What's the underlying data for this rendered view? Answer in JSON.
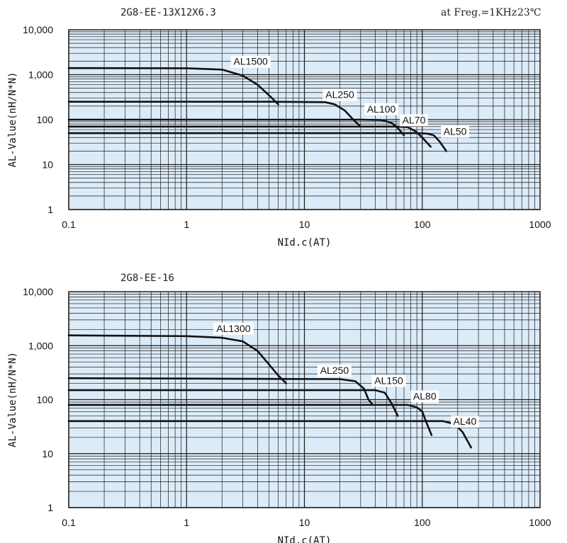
{
  "header": {
    "condition": "at Freg.=1KHz",
    "temperature": "23℃"
  },
  "chart_data": [
    {
      "type": "line",
      "title": "2G8-EE-13X12X6.3",
      "xlabel": "NId.c(AT)",
      "ylabel": "AL-Value(nH/N*N)",
      "xscale": "log",
      "yscale": "log",
      "xlim": [
        0.1,
        1000
      ],
      "ylim": [
        1,
        10000
      ],
      "grid": true,
      "x_ticks": [
        "0.1",
        "1",
        "10",
        "100",
        "1000"
      ],
      "y_ticks": [
        "1",
        "10",
        "100",
        "1,000",
        "10,000"
      ],
      "series": [
        {
          "name": "AL1500",
          "points": [
            [
              0.1,
              1400
            ],
            [
              1,
              1390
            ],
            [
              2,
              1300
            ],
            [
              3,
              950
            ],
            [
              4,
              600
            ],
            [
              5,
              350
            ],
            [
              6,
              220
            ]
          ]
        },
        {
          "name": "AL250",
          "points": [
            [
              0.1,
              250
            ],
            [
              5,
              250
            ],
            [
              15,
              245
            ],
            [
              18,
              220
            ],
            [
              22,
              160
            ],
            [
              26,
              100
            ],
            [
              30,
              70
            ]
          ]
        },
        {
          "name": "AL100",
          "points": [
            [
              0.1,
              100
            ],
            [
              30,
              100
            ],
            [
              45,
              98
            ],
            [
              55,
              85
            ],
            [
              62,
              65
            ],
            [
              70,
              45
            ]
          ]
        },
        {
          "name": "AL70",
          "points": [
            [
              0.1,
              70
            ],
            [
              60,
              70
            ],
            [
              75,
              68
            ],
            [
              88,
              55
            ],
            [
              100,
              40
            ],
            [
              118,
              25
            ]
          ]
        },
        {
          "name": "AL50",
          "points": [
            [
              0.1,
              50
            ],
            [
              90,
              50
            ],
            [
              110,
              49
            ],
            [
              125,
              45
            ],
            [
              140,
              33
            ],
            [
              160,
              20
            ]
          ]
        }
      ]
    },
    {
      "type": "line",
      "title": "2G8-EE-16",
      "xlabel": "NId.c(AT)",
      "ylabel": "AL-Value(nH/N*N)",
      "xscale": "log",
      "yscale": "log",
      "xlim": [
        0.1,
        1000
      ],
      "ylim": [
        1,
        10000
      ],
      "grid": true,
      "x_ticks": [
        "0.1",
        "1",
        "10",
        "100",
        "1000"
      ],
      "y_ticks": [
        "1",
        "10",
        "100",
        "1,000",
        "10,000"
      ],
      "series": [
        {
          "name": "AL1300",
          "points": [
            [
              0.1,
              1550
            ],
            [
              1,
              1500
            ],
            [
              2,
              1400
            ],
            [
              3,
              1200
            ],
            [
              4,
              800
            ],
            [
              5,
              450
            ],
            [
              6,
              280
            ],
            [
              7,
              200
            ]
          ]
        },
        {
          "name": "AL250",
          "points": [
            [
              0.1,
              250
            ],
            [
              20,
              240
            ],
            [
              27,
              220
            ],
            [
              32,
              160
            ],
            [
              35,
              100
            ],
            [
              38,
              80
            ]
          ]
        },
        {
          "name": "AL150",
          "points": [
            [
              0.1,
              150
            ],
            [
              40,
              150
            ],
            [
              48,
              135
            ],
            [
              55,
              85
            ],
            [
              62,
              50
            ]
          ]
        },
        {
          "name": "AL80",
          "points": [
            [
              0.1,
              80
            ],
            [
              75,
              80
            ],
            [
              90,
              72
            ],
            [
              100,
              60
            ],
            [
              110,
              35
            ],
            [
              120,
              22
            ]
          ]
        },
        {
          "name": "AL40",
          "points": [
            [
              0.1,
              40
            ],
            [
              150,
              40
            ],
            [
              190,
              35
            ],
            [
              220,
              25
            ],
            [
              260,
              13
            ]
          ]
        }
      ]
    }
  ]
}
